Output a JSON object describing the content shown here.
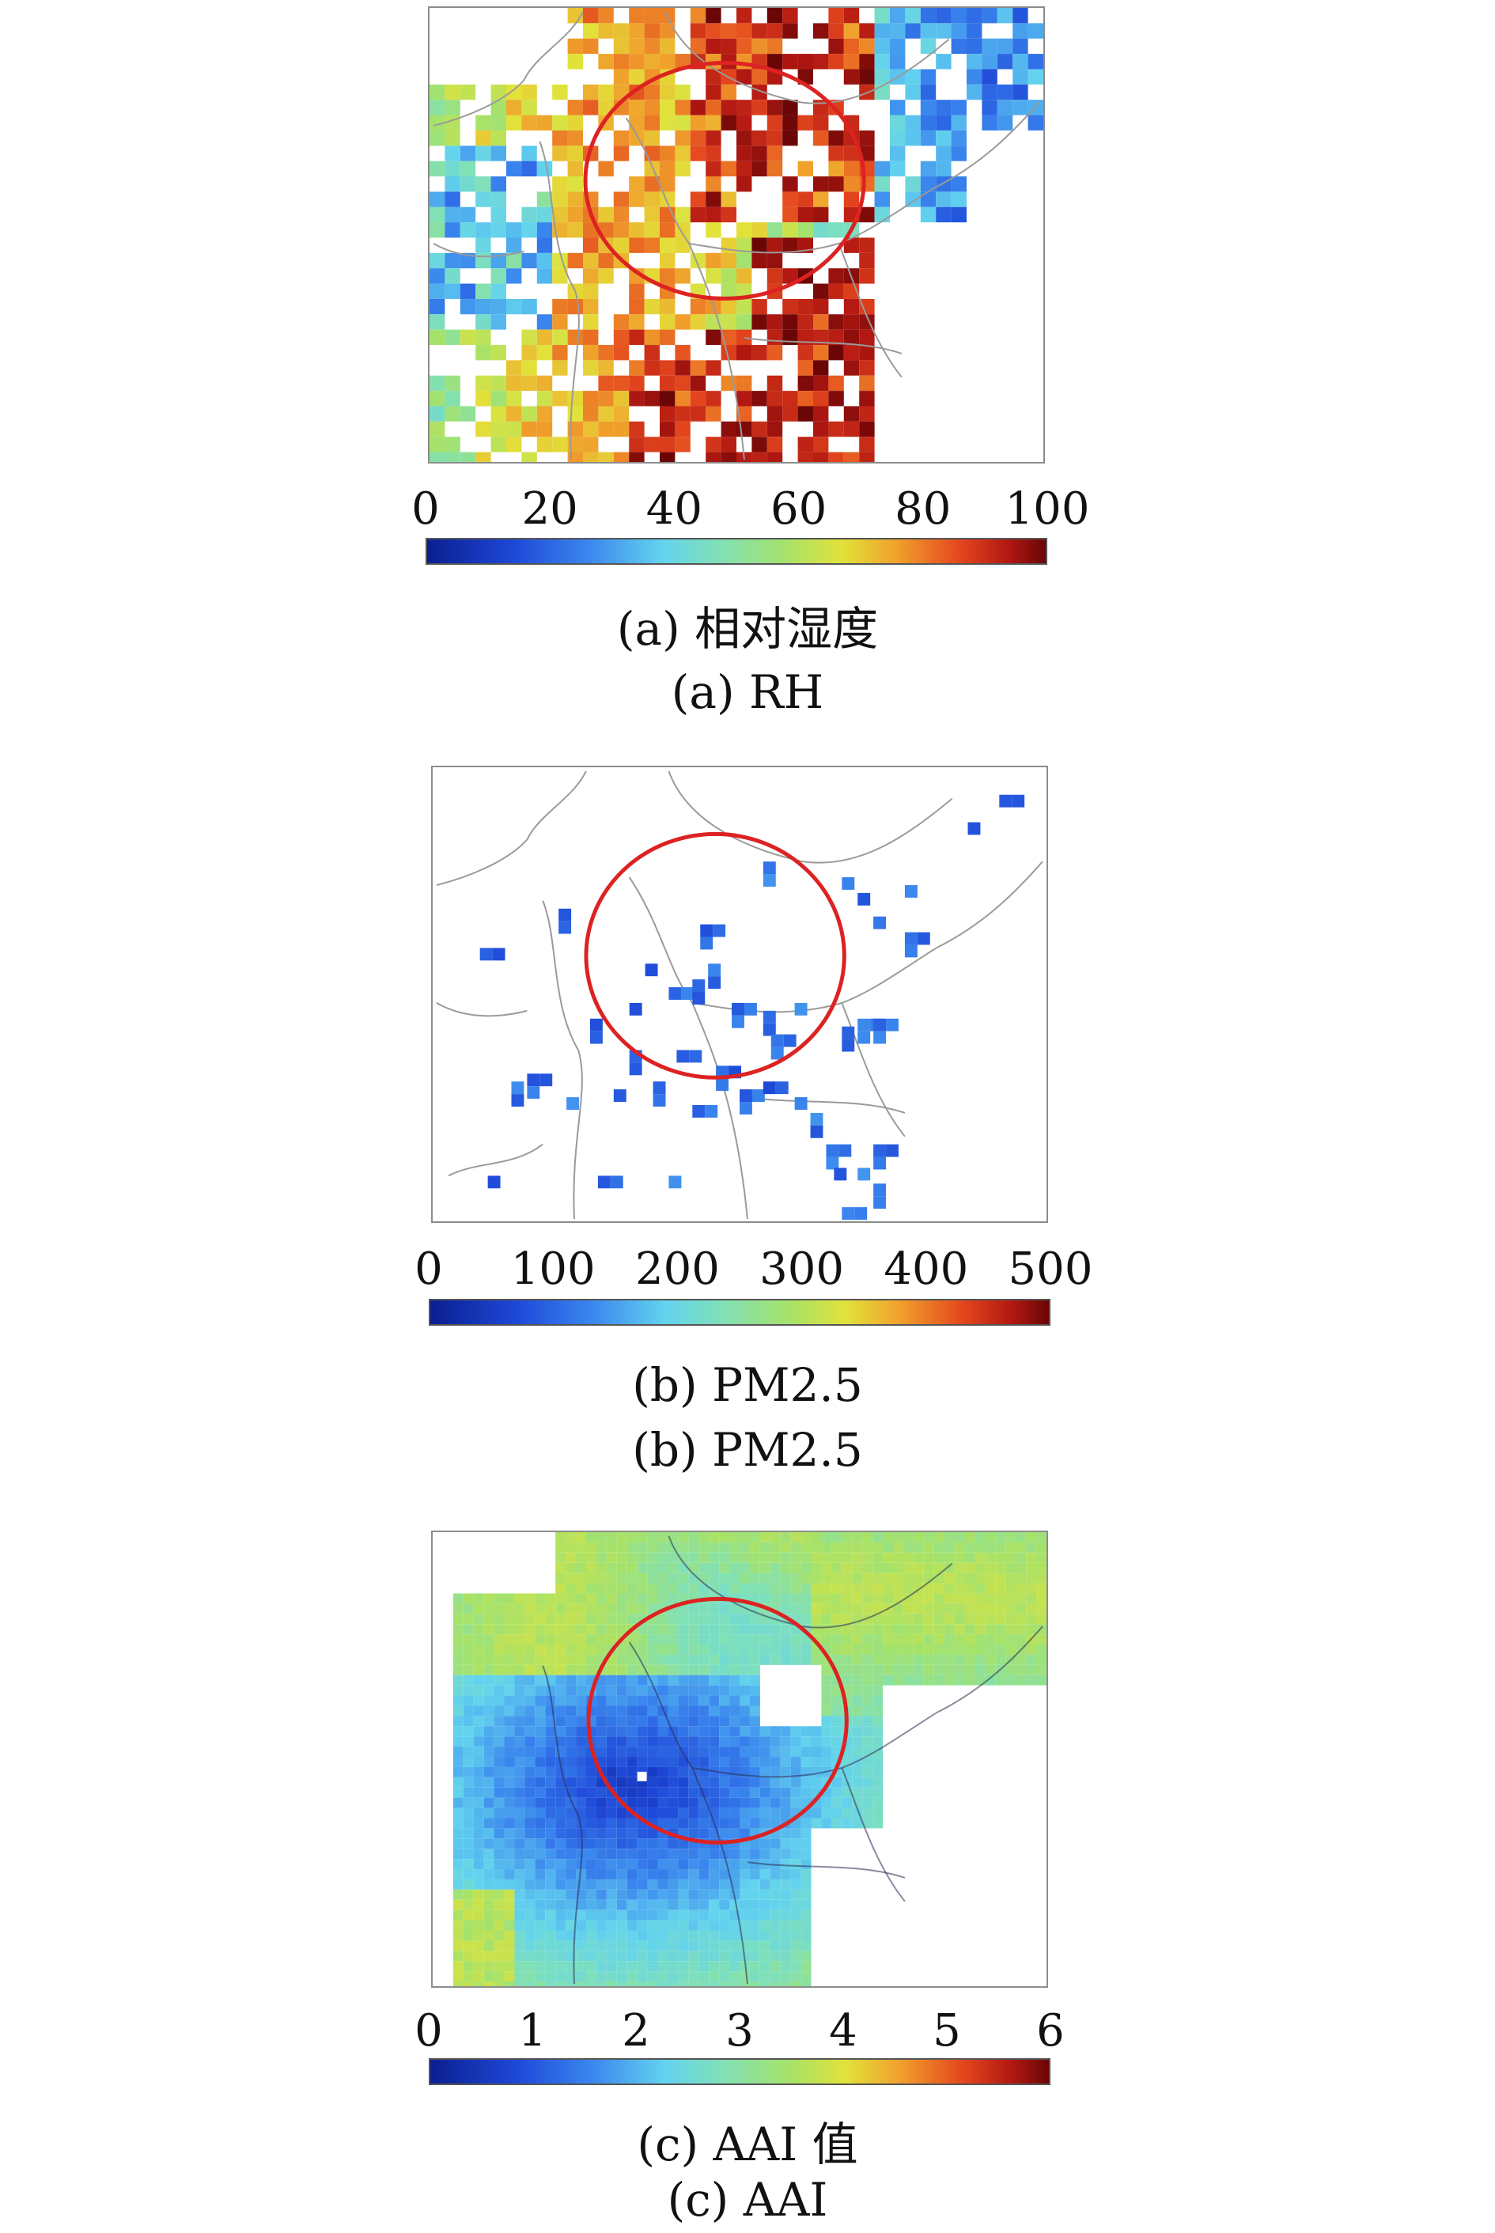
{
  "panels": [
    {
      "id": "a",
      "colorbar_ticks": [
        "0",
        "20",
        "40",
        "60",
        "80",
        "100"
      ],
      "caption_cn": "(a) 相对湿度",
      "caption_en": "(a) RH"
    },
    {
      "id": "b",
      "colorbar_ticks": [
        "0",
        "100",
        "200",
        "300",
        "400",
        "500"
      ],
      "caption_cn": "(b) PM2.5",
      "caption_en": "(b) PM2.5"
    },
    {
      "id": "c",
      "colorbar_ticks": [
        "0",
        "1",
        "2",
        "3",
        "4",
        "5",
        "6"
      ],
      "caption_cn": "(c) AAI 值",
      "caption_en": "(c) AAI"
    }
  ],
  "colors": {
    "circle": "#dd2222",
    "frame": "#8c8c8c",
    "boundary": "#9a9a9a",
    "colormap": [
      "#0a1f8f",
      "#1e48d8",
      "#3a86ee",
      "#63d3ee",
      "#7fe0b8",
      "#a6e26a",
      "#e2e23a",
      "#f0a02c",
      "#e4471e",
      "#b21812",
      "#6a0606"
    ]
  }
}
